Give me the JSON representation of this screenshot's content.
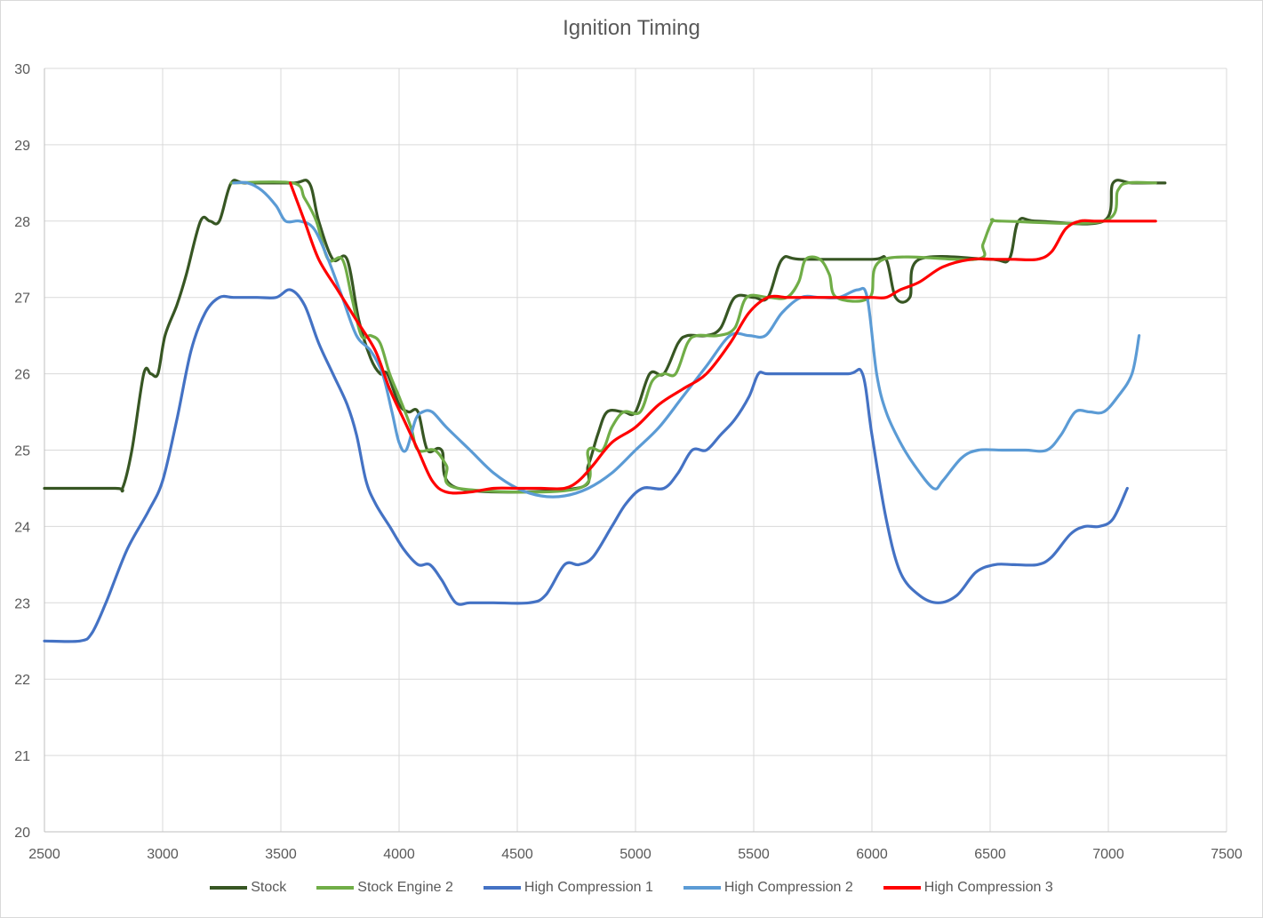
{
  "chart_data": {
    "type": "line",
    "title": "Ignition Timing",
    "xlabel": "",
    "ylabel": "",
    "xlim": [
      2500,
      7500
    ],
    "ylim": [
      20,
      30
    ],
    "x_ticks": [
      2500,
      3000,
      3500,
      4000,
      4500,
      5000,
      5500,
      6000,
      6500,
      7000,
      7500
    ],
    "y_ticks": [
      20,
      21,
      22,
      23,
      24,
      25,
      26,
      27,
      28,
      29,
      30
    ],
    "grid": true,
    "legend_position": "bottom",
    "series": [
      {
        "name": "Stock",
        "color": "#375623",
        "points": [
          [
            2500,
            24.5
          ],
          [
            2800,
            24.5
          ],
          [
            2830,
            24.5
          ],
          [
            2870,
            25.0
          ],
          [
            2920,
            26.0
          ],
          [
            2950,
            26.0
          ],
          [
            2980,
            26.0
          ],
          [
            3010,
            26.5
          ],
          [
            3060,
            26.9
          ],
          [
            3100,
            27.3
          ],
          [
            3160,
            28.0
          ],
          [
            3200,
            28.0
          ],
          [
            3240,
            28.0
          ],
          [
            3290,
            28.5
          ],
          [
            3350,
            28.5
          ],
          [
            3550,
            28.5
          ],
          [
            3620,
            28.5
          ],
          [
            3660,
            28.0
          ],
          [
            3720,
            27.5
          ],
          [
            3780,
            27.5
          ],
          [
            3830,
            26.7
          ],
          [
            3880,
            26.2
          ],
          [
            3920,
            26.0
          ],
          [
            3950,
            26.0
          ],
          [
            4000,
            25.6
          ],
          [
            4040,
            25.5
          ],
          [
            4080,
            25.5
          ],
          [
            4120,
            25.0
          ],
          [
            4180,
            25.0
          ],
          [
            4250,
            24.5
          ],
          [
            4750,
            24.5
          ],
          [
            4800,
            24.8
          ],
          [
            4840,
            25.2
          ],
          [
            4880,
            25.5
          ],
          [
            4950,
            25.5
          ],
          [
            5000,
            25.5
          ],
          [
            5060,
            26.0
          ],
          [
            5120,
            26.0
          ],
          [
            5180,
            26.4
          ],
          [
            5220,
            26.5
          ],
          [
            5300,
            26.5
          ],
          [
            5360,
            26.6
          ],
          [
            5420,
            27.0
          ],
          [
            5500,
            27.0
          ],
          [
            5560,
            27.0
          ],
          [
            5620,
            27.5
          ],
          [
            5700,
            27.5
          ],
          [
            6000,
            27.5
          ],
          [
            6060,
            27.5
          ],
          [
            6100,
            27.0
          ],
          [
            6160,
            27.0
          ],
          [
            6200,
            27.5
          ],
          [
            6500,
            27.5
          ],
          [
            6580,
            27.5
          ],
          [
            6620,
            28.0
          ],
          [
            6700,
            28.0
          ],
          [
            6980,
            28.0
          ],
          [
            7020,
            28.5
          ],
          [
            7100,
            28.5
          ],
          [
            7240,
            28.5
          ]
        ]
      },
      {
        "name": "Stock Engine 2",
        "color": "#70ad47",
        "points": [
          [
            3290,
            28.5
          ],
          [
            3550,
            28.5
          ],
          [
            3600,
            28.3
          ],
          [
            3650,
            28.0
          ],
          [
            3700,
            27.5
          ],
          [
            3760,
            27.5
          ],
          [
            3800,
            27.0
          ],
          [
            3840,
            26.5
          ],
          [
            3880,
            26.5
          ],
          [
            3920,
            26.4
          ],
          [
            3960,
            26.0
          ],
          [
            4000,
            25.7
          ],
          [
            4050,
            25.3
          ],
          [
            4080,
            25.0
          ],
          [
            4150,
            25.0
          ],
          [
            4200,
            24.8
          ],
          [
            4250,
            24.5
          ],
          [
            4760,
            24.5
          ],
          [
            4800,
            25.0
          ],
          [
            4860,
            25.0
          ],
          [
            4900,
            25.3
          ],
          [
            4950,
            25.5
          ],
          [
            5020,
            25.5
          ],
          [
            5070,
            25.9
          ],
          [
            5120,
            26.0
          ],
          [
            5170,
            26.0
          ],
          [
            5220,
            26.4
          ],
          [
            5260,
            26.5
          ],
          [
            5350,
            26.5
          ],
          [
            5420,
            26.6
          ],
          [
            5470,
            27.0
          ],
          [
            5560,
            27.0
          ],
          [
            5640,
            27.0
          ],
          [
            5690,
            27.2
          ],
          [
            5720,
            27.5
          ],
          [
            5780,
            27.5
          ],
          [
            5820,
            27.3
          ],
          [
            5850,
            27.0
          ],
          [
            5990,
            27.0
          ],
          [
            6050,
            27.5
          ],
          [
            6440,
            27.5
          ],
          [
            6470,
            27.7
          ],
          [
            6510,
            28.0
          ],
          [
            6550,
            28.0
          ],
          [
            6980,
            28.0
          ],
          [
            7040,
            28.4
          ],
          [
            7080,
            28.5
          ],
          [
            7200,
            28.5
          ]
        ]
      },
      {
        "name": "High Compression 1",
        "color": "#4472c4",
        "points": [
          [
            2500,
            22.5
          ],
          [
            2650,
            22.5
          ],
          [
            2700,
            22.6
          ],
          [
            2760,
            23.0
          ],
          [
            2850,
            23.7
          ],
          [
            2940,
            24.2
          ],
          [
            3000,
            24.6
          ],
          [
            3060,
            25.4
          ],
          [
            3120,
            26.3
          ],
          [
            3180,
            26.8
          ],
          [
            3240,
            27.0
          ],
          [
            3300,
            27.0
          ],
          [
            3400,
            27.0
          ],
          [
            3480,
            27.0
          ],
          [
            3540,
            27.1
          ],
          [
            3600,
            26.9
          ],
          [
            3660,
            26.4
          ],
          [
            3720,
            26.0
          ],
          [
            3780,
            25.6
          ],
          [
            3820,
            25.2
          ],
          [
            3860,
            24.6
          ],
          [
            3900,
            24.3
          ],
          [
            3960,
            24.0
          ],
          [
            4020,
            23.7
          ],
          [
            4080,
            23.5
          ],
          [
            4130,
            23.5
          ],
          [
            4180,
            23.3
          ],
          [
            4240,
            23.0
          ],
          [
            4300,
            23.0
          ],
          [
            4400,
            23.0
          ],
          [
            4550,
            23.0
          ],
          [
            4620,
            23.1
          ],
          [
            4700,
            23.5
          ],
          [
            4760,
            23.5
          ],
          [
            4820,
            23.6
          ],
          [
            4900,
            24.0
          ],
          [
            4960,
            24.3
          ],
          [
            5030,
            24.5
          ],
          [
            5120,
            24.5
          ],
          [
            5180,
            24.7
          ],
          [
            5240,
            25.0
          ],
          [
            5300,
            25.0
          ],
          [
            5360,
            25.2
          ],
          [
            5420,
            25.4
          ],
          [
            5480,
            25.7
          ],
          [
            5520,
            26.0
          ],
          [
            5560,
            26.0
          ],
          [
            5700,
            26.0
          ],
          [
            5900,
            26.0
          ],
          [
            5960,
            26.0
          ],
          [
            6000,
            25.2
          ],
          [
            6060,
            24.1
          ],
          [
            6120,
            23.4
          ],
          [
            6200,
            23.1
          ],
          [
            6280,
            23.0
          ],
          [
            6360,
            23.1
          ],
          [
            6440,
            23.4
          ],
          [
            6520,
            23.5
          ],
          [
            6600,
            23.5
          ],
          [
            6700,
            23.5
          ],
          [
            6760,
            23.6
          ],
          [
            6840,
            23.9
          ],
          [
            6900,
            24.0
          ],
          [
            6960,
            24.0
          ],
          [
            7020,
            24.1
          ],
          [
            7080,
            24.5
          ]
        ]
      },
      {
        "name": "High Compression 2",
        "color": "#5b9bd5",
        "points": [
          [
            3300,
            28.5
          ],
          [
            3360,
            28.5
          ],
          [
            3420,
            28.4
          ],
          [
            3480,
            28.2
          ],
          [
            3520,
            28.0
          ],
          [
            3580,
            28.0
          ],
          [
            3640,
            27.9
          ],
          [
            3700,
            27.5
          ],
          [
            3760,
            27.0
          ],
          [
            3820,
            26.5
          ],
          [
            3880,
            26.3
          ],
          [
            3930,
            26.0
          ],
          [
            3970,
            25.5
          ],
          [
            4000,
            25.1
          ],
          [
            4030,
            25.0
          ],
          [
            4070,
            25.4
          ],
          [
            4100,
            25.5
          ],
          [
            4140,
            25.5
          ],
          [
            4200,
            25.3
          ],
          [
            4300,
            25.0
          ],
          [
            4400,
            24.7
          ],
          [
            4500,
            24.5
          ],
          [
            4600,
            24.4
          ],
          [
            4700,
            24.4
          ],
          [
            4800,
            24.5
          ],
          [
            4900,
            24.7
          ],
          [
            5000,
            25.0
          ],
          [
            5100,
            25.3
          ],
          [
            5200,
            25.7
          ],
          [
            5300,
            26.1
          ],
          [
            5400,
            26.5
          ],
          [
            5480,
            26.5
          ],
          [
            5550,
            26.5
          ],
          [
            5620,
            26.8
          ],
          [
            5700,
            27.0
          ],
          [
            5780,
            27.0
          ],
          [
            5860,
            27.0
          ],
          [
            5940,
            27.1
          ],
          [
            5980,
            27.0
          ],
          [
            6020,
            26.0
          ],
          [
            6060,
            25.5
          ],
          [
            6120,
            25.1
          ],
          [
            6180,
            24.8
          ],
          [
            6260,
            24.5
          ],
          [
            6300,
            24.6
          ],
          [
            6380,
            24.9
          ],
          [
            6450,
            25.0
          ],
          [
            6550,
            25.0
          ],
          [
            6650,
            25.0
          ],
          [
            6740,
            25.0
          ],
          [
            6800,
            25.2
          ],
          [
            6860,
            25.5
          ],
          [
            6920,
            25.5
          ],
          [
            6980,
            25.5
          ],
          [
            7040,
            25.7
          ],
          [
            7100,
            26.0
          ],
          [
            7130,
            26.5
          ]
        ]
      },
      {
        "name": "High Compression 3",
        "color": "#ff0000",
        "points": [
          [
            3540,
            28.5
          ],
          [
            3600,
            28.0
          ],
          [
            3660,
            27.5
          ],
          [
            3740,
            27.1
          ],
          [
            3820,
            26.7
          ],
          [
            3900,
            26.3
          ],
          [
            3960,
            25.8
          ],
          [
            4020,
            25.4
          ],
          [
            4080,
            25.0
          ],
          [
            4140,
            24.6
          ],
          [
            4200,
            24.45
          ],
          [
            4300,
            24.45
          ],
          [
            4400,
            24.5
          ],
          [
            4500,
            24.5
          ],
          [
            4600,
            24.5
          ],
          [
            4700,
            24.5
          ],
          [
            4760,
            24.6
          ],
          [
            4820,
            24.8
          ],
          [
            4900,
            25.1
          ],
          [
            5000,
            25.3
          ],
          [
            5100,
            25.6
          ],
          [
            5200,
            25.8
          ],
          [
            5300,
            26.0
          ],
          [
            5400,
            26.4
          ],
          [
            5480,
            26.8
          ],
          [
            5560,
            27.0
          ],
          [
            5640,
            27.0
          ],
          [
            5700,
            27.0
          ],
          [
            5800,
            27.0
          ],
          [
            5900,
            27.0
          ],
          [
            6000,
            27.0
          ],
          [
            6060,
            27.0
          ],
          [
            6120,
            27.1
          ],
          [
            6200,
            27.2
          ],
          [
            6300,
            27.4
          ],
          [
            6420,
            27.5
          ],
          [
            6520,
            27.5
          ],
          [
            6600,
            27.5
          ],
          [
            6700,
            27.5
          ],
          [
            6760,
            27.6
          ],
          [
            6820,
            27.9
          ],
          [
            6880,
            28.0
          ],
          [
            6940,
            28.0
          ],
          [
            7000,
            28.0
          ],
          [
            7100,
            28.0
          ],
          [
            7200,
            28.0
          ]
        ]
      }
    ]
  }
}
